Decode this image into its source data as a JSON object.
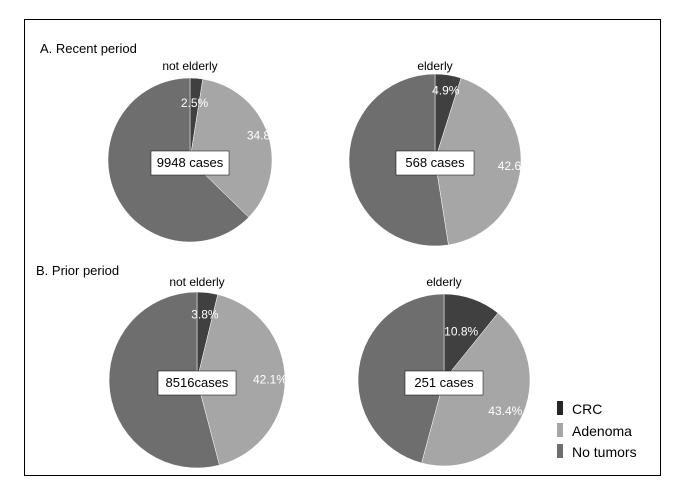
{
  "chart_data": [
    {
      "type": "pie",
      "panel": "A. Recent period",
      "title": "not elderly",
      "center_label": "9948 cases",
      "slices": [
        {
          "name": "CRC",
          "value": 2.5,
          "label": "2.5%",
          "color": "#404040"
        },
        {
          "name": "Adenoma",
          "value": 34.8,
          "label": "34.8%",
          "color": "#a6a6a6"
        },
        {
          "name": "No tumors",
          "value": 62.7,
          "label": "",
          "color": "#6e6e6e"
        }
      ]
    },
    {
      "type": "pie",
      "panel": "A. Recent period",
      "title": "elderly",
      "center_label": "568 cases",
      "slices": [
        {
          "name": "CRC",
          "value": 4.9,
          "label": "4.9%",
          "color": "#404040"
        },
        {
          "name": "Adenoma",
          "value": 42.6,
          "label": "42.6%",
          "color": "#a6a6a6"
        },
        {
          "name": "No tumors",
          "value": 52.5,
          "label": "",
          "color": "#6e6e6e"
        }
      ]
    },
    {
      "type": "pie",
      "panel": "B. Prior period",
      "title": "not elderly",
      "center_label": "8516cases",
      "slices": [
        {
          "name": "CRC",
          "value": 3.8,
          "label": "3.8%",
          "color": "#404040"
        },
        {
          "name": "Adenoma",
          "value": 42.1,
          "label": "42.1%",
          "color": "#a6a6a6"
        },
        {
          "name": "No tumors",
          "value": 54.1,
          "label": "",
          "color": "#6e6e6e"
        }
      ]
    },
    {
      "type": "pie",
      "panel": "B. Prior period",
      "title": "elderly",
      "center_label": "251 cases",
      "slices": [
        {
          "name": "CRC",
          "value": 10.8,
          "label": "10.8%",
          "color": "#404040"
        },
        {
          "name": "Adenoma",
          "value": 43.4,
          "label": "43.4%",
          "color": "#a6a6a6"
        },
        {
          "name": "No tumors",
          "value": 45.8,
          "label": "",
          "color": "#6e6e6e"
        }
      ]
    }
  ],
  "panels": {
    "recent": "A. Recent period",
    "prior": "B. Prior period"
  },
  "legend": {
    "position": "bottom-right",
    "items": [
      {
        "label": "CRC",
        "color": "#262626"
      },
      {
        "label": "Adenoma",
        "color": "#a6a6a6"
      },
      {
        "label": "No tumors",
        "color": "#6e6e6e"
      }
    ]
  }
}
